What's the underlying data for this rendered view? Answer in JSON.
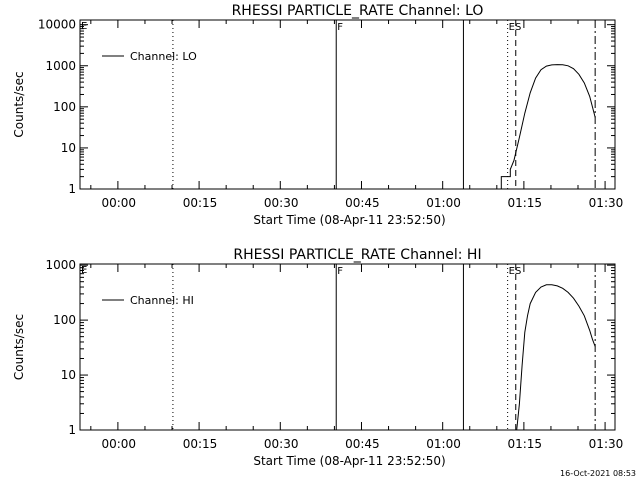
{
  "chart_data": [
    {
      "type": "line",
      "title": "RHESSI PARTICLE_RATE Channel: LO",
      "xlabel": "Start Time (08-Apr-11 23:52:50)",
      "ylabel": "Counts/sec",
      "y_scale": "log",
      "ylim": [
        1,
        13000
      ],
      "y_ticks": [
        1,
        10,
        100,
        1000,
        10000
      ],
      "y_tick_labels": [
        "1",
        "10",
        "100",
        "1000",
        "10000"
      ],
      "xlim": [
        "23:52:50",
        "01:31:40"
      ],
      "x_ticks": [
        "00:00",
        "00:15",
        "00:30",
        "00:45",
        "01:00",
        "01:15",
        "01:30"
      ],
      "legend": {
        "position": "top-left",
        "entries": [
          "Channel: LO"
        ]
      },
      "series": [
        {
          "name": "Channel: LO",
          "x": [
            "01:09:40",
            "01:10:40",
            "01:10:40",
            "01:12:20",
            "01:12:20",
            "01:13:00",
            "01:14:00",
            "01:15:00",
            "01:16:00",
            "01:17:00",
            "01:18:00",
            "01:19:00",
            "01:20:00",
            "01:21:00",
            "01:22:00",
            "01:23:00",
            "01:24:00",
            "01:25:00",
            "01:26:00",
            "01:27:00",
            "01:27:30",
            "01:28:00"
          ],
          "values": [
            1,
            1,
            2,
            2,
            3,
            5,
            18,
            70,
            220,
            500,
            800,
            980,
            1050,
            1070,
            1060,
            1000,
            850,
            620,
            380,
            180,
            100,
            55
          ]
        }
      ],
      "markers": [
        {
          "type": "dotted",
          "x": "00:10:00"
        },
        {
          "type": "solid",
          "x": "00:40:10",
          "label": "F"
        },
        {
          "type": "solid",
          "x": "01:03:40"
        },
        {
          "type": "dotted",
          "x": "01:11:50",
          "label": "ES"
        },
        {
          "type": "dashed",
          "x": "01:13:20"
        },
        {
          "type": "dashdot",
          "x": "01:28:00"
        }
      ],
      "corner_label": "E"
    },
    {
      "type": "line",
      "title": "RHESSI PARTICLE_RATE Channel: HI",
      "xlabel": "Start Time (08-Apr-11 23:52:50)",
      "ylabel": "Counts/sec",
      "y_scale": "log",
      "ylim": [
        1,
        1000
      ],
      "y_ticks": [
        1,
        10,
        100,
        1000
      ],
      "y_tick_labels": [
        "1",
        "10",
        "100",
        "1000"
      ],
      "xlim": [
        "23:52:50",
        "01:31:40"
      ],
      "x_ticks": [
        "00:00",
        "00:15",
        "00:30",
        "00:45",
        "01:00",
        "01:15",
        "01:30"
      ],
      "legend": {
        "position": "top-left",
        "entries": [
          "Channel: HI"
        ]
      },
      "series": [
        {
          "name": "Channel: HI",
          "x": [
            "01:13:30",
            "01:14:00",
            "01:14:30",
            "01:15:00",
            "01:15:30",
            "01:16:00",
            "01:17:00",
            "01:18:00",
            "01:19:00",
            "01:20:00",
            "01:21:00",
            "01:22:00",
            "01:23:00",
            "01:24:00",
            "01:25:00",
            "01:26:00",
            "01:27:00",
            "01:27:30",
            "01:28:00"
          ],
          "values": [
            1,
            3,
            15,
            60,
            120,
            200,
            320,
            400,
            440,
            440,
            420,
            380,
            320,
            250,
            180,
            120,
            65,
            45,
            33
          ]
        }
      ],
      "markers": [
        {
          "type": "dotted",
          "x": "00:10:00"
        },
        {
          "type": "solid",
          "x": "00:40:10",
          "label": "F"
        },
        {
          "type": "solid",
          "x": "01:03:40"
        },
        {
          "type": "dotted",
          "x": "01:11:50",
          "label": "ES"
        },
        {
          "type": "dashed",
          "x": "01:13:20"
        },
        {
          "type": "dashdot",
          "x": "01:28:00"
        }
      ],
      "corner_label": "E"
    }
  ],
  "footer": {
    "timestamp": "16-Oct-2021 08:53"
  }
}
